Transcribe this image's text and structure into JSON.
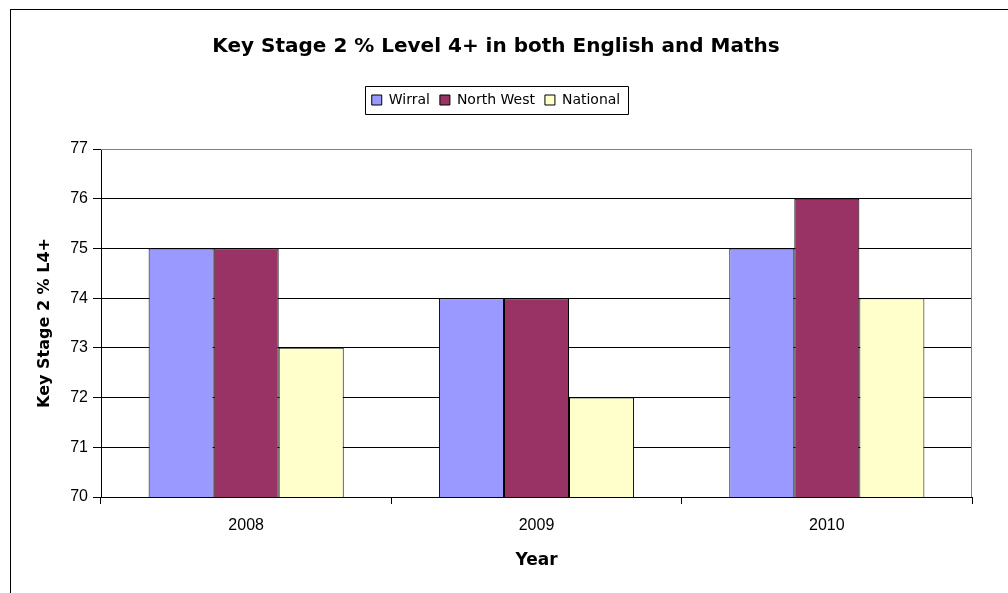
{
  "chart_data": {
    "type": "bar",
    "title": "Key Stage 2 % Level 4+ in both English and Maths",
    "xlabel": "Year",
    "ylabel": "Key Stage 2 % L4+",
    "categories": [
      "2008",
      "2009",
      "2010"
    ],
    "series": [
      {
        "name": "Wirral",
        "color": "#9999ff",
        "values": [
          75,
          74,
          75
        ]
      },
      {
        "name": "North West",
        "color": "#993366",
        "values": [
          75,
          74,
          76
        ]
      },
      {
        "name": "National",
        "color": "#ffffcc",
        "values": [
          73,
          72,
          74
        ]
      }
    ],
    "ylim": [
      70,
      77
    ],
    "yticks": [
      70,
      71,
      72,
      73,
      74,
      75,
      76,
      77
    ],
    "grid": "y",
    "legend": "top"
  }
}
